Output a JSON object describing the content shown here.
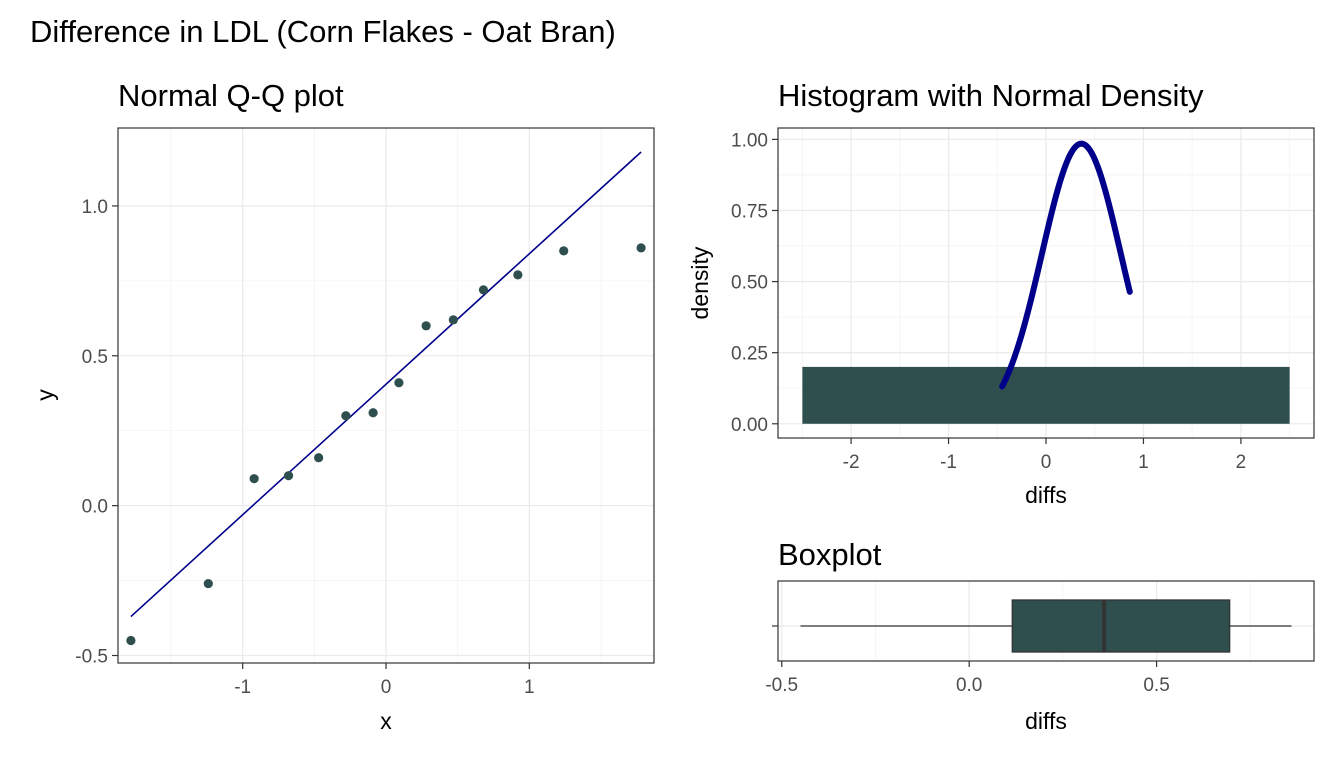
{
  "page_title": "Difference in LDL (Corn Flakes - Oat Bran)",
  "colors": {
    "fill": "#2f4f4f",
    "line": "#00008b",
    "panel_border": "#333333",
    "grid": "#ebebeb"
  },
  "chart_data": [
    {
      "type": "scatter",
      "title": "Normal Q-Q plot",
      "xlabel": "x",
      "ylabel": "y",
      "xlim": [
        -1.87,
        1.87
      ],
      "ylim": [
        -0.525,
        1.26
      ],
      "xticks": [
        -1,
        0,
        1
      ],
      "xticklabels": [
        "-1",
        "0",
        "1"
      ],
      "yticks": [
        -0.5,
        0.0,
        0.5,
        1.0
      ],
      "yticklabels": [
        "-0.5",
        "0.0",
        "0.5",
        "1.0"
      ],
      "grid": true,
      "points": {
        "x": [
          -1.78,
          -1.24,
          -0.92,
          -0.68,
          -0.47,
          -0.28,
          -0.09,
          0.09,
          0.28,
          0.47,
          0.68,
          0.92,
          1.24,
          1.78
        ],
        "y": [
          -0.45,
          -0.26,
          0.09,
          0.1,
          0.16,
          0.3,
          0.31,
          0.41,
          0.6,
          0.62,
          0.72,
          0.77,
          0.85,
          0.86
        ]
      },
      "reference_line": {
        "x": [
          -1.78,
          1.78
        ],
        "y": [
          -0.37,
          1.18
        ]
      }
    },
    {
      "type": "bar",
      "title": "Histogram with Normal Density",
      "xlabel": "diffs",
      "ylabel": "density",
      "xlim": [
        -2.75,
        2.75
      ],
      "ylim": [
        -0.05,
        1.04
      ],
      "xticks": [
        -2,
        -1,
        0,
        1,
        2
      ],
      "xticklabels": [
        "-2",
        "-1",
        "0",
        "1",
        "2"
      ],
      "yticks": [
        0.0,
        0.25,
        0.5,
        0.75,
        1.0
      ],
      "yticklabels": [
        "0.00",
        "0.25",
        "0.50",
        "0.75",
        "1.00"
      ],
      "grid": true,
      "bins": [
        {
          "xmin": -2.5,
          "xmax": 2.5,
          "density": 0.2
        }
      ],
      "density_curve": {
        "mean": 0.363,
        "sd": 0.405,
        "from": -0.45,
        "to": 0.86
      }
    },
    {
      "type": "box",
      "title": "Boxplot",
      "xlabel": "diffs",
      "xlim": [
        -0.51,
        0.92
      ],
      "xticks": [
        -0.5,
        0.0,
        0.5
      ],
      "xticklabels": [
        "-0.5",
        "0.0",
        "0.5"
      ],
      "grid": true,
      "stats": {
        "min": -0.45,
        "q1": 0.115,
        "median": 0.36,
        "q3": 0.695,
        "max": 0.86
      }
    }
  ]
}
